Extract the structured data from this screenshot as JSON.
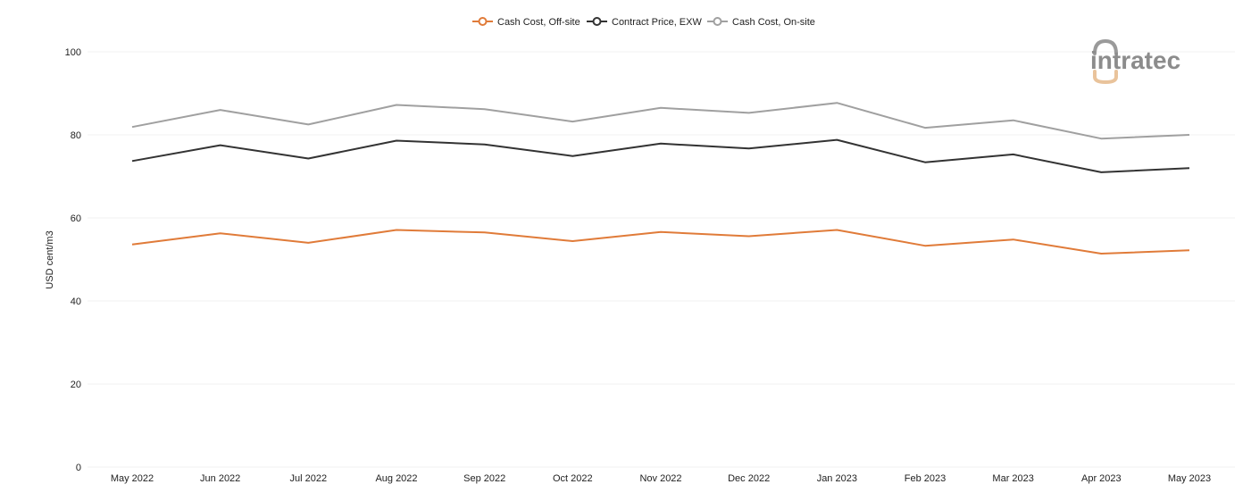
{
  "chart_data": {
    "type": "line",
    "title": "",
    "xlabel": "",
    "ylabel": "USD cent/m3",
    "ylim": [
      0,
      100
    ],
    "yticks": [
      0,
      20,
      40,
      60,
      80,
      100
    ],
    "grid": true,
    "legend_position": "top-center",
    "categories": [
      "May 2022",
      "Jun 2022",
      "Jul 2022",
      "Aug 2022",
      "Sep 2022",
      "Oct 2022",
      "Nov 2022",
      "Dec 2022",
      "Jan 2023",
      "Feb 2023",
      "Mar 2023",
      "Apr 2023",
      "May 2023"
    ],
    "series": [
      {
        "name": "Cash Cost, Off-site",
        "color": "#e07b39",
        "values": [
          53.6,
          56.3,
          54.0,
          57.1,
          56.5,
          54.4,
          56.6,
          55.6,
          57.1,
          53.3,
          54.8,
          51.4,
          52.2
        ]
      },
      {
        "name": "Contract Price, EXW",
        "color": "#333333",
        "values": [
          73.7,
          77.5,
          74.3,
          78.6,
          77.7,
          74.9,
          77.9,
          76.7,
          78.8,
          73.4,
          75.3,
          71.0,
          72.0
        ]
      },
      {
        "name": "Cash Cost, On-site",
        "color": "#a0a0a0",
        "values": [
          81.9,
          86.0,
          82.5,
          87.2,
          86.2,
          83.2,
          86.5,
          85.3,
          87.7,
          81.7,
          83.5,
          79.1,
          80.0
        ]
      }
    ]
  },
  "logo": {
    "text": "intratec",
    "color": "#8c8c8c",
    "accent_color": "#e9c39b"
  }
}
